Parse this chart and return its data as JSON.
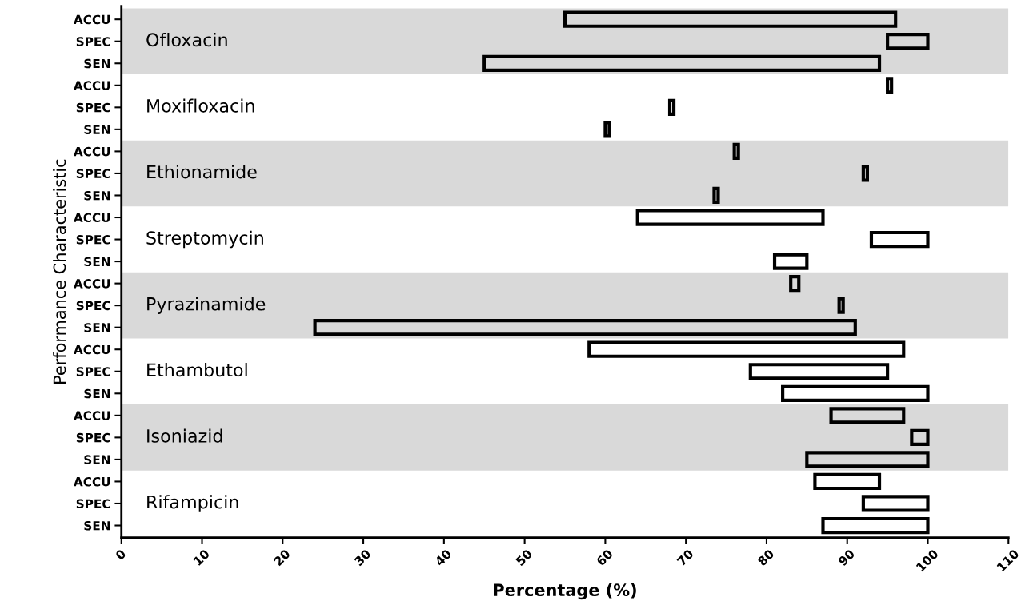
{
  "chart_data": {
    "type": "bar",
    "orientation": "horizontal",
    "xlabel": "Percentage (%)",
    "ylabel": "Performance Characteristic",
    "categories": [
      "ACCU",
      "SPEC",
      "SEN",
      "ACCU",
      "SPEC",
      "SEN",
      "ACCU",
      "SPEC",
      "SEN",
      "ACCU",
      "SPEC",
      "SEN",
      "ACCU",
      "SPEC",
      "SEN",
      "ACCU",
      "SPEC",
      "SEN",
      "ACCU",
      "SPEC",
      "SEN",
      "ACCU",
      "SPEC",
      "SEN"
    ],
    "base": [
      55,
      95,
      45,
      95,
      68,
      60,
      76,
      92,
      73.5,
      64,
      93,
      81,
      83,
      89,
      24,
      58,
      78,
      82,
      88,
      98,
      85,
      86,
      92,
      87
    ],
    "values": [
      41,
      5,
      49,
      0.5,
      0.5,
      0.5,
      0.5,
      0.5,
      0.5,
      23,
      7,
      4,
      1,
      0.5,
      67,
      39,
      17,
      18,
      9,
      2,
      15,
      8,
      8,
      13
    ],
    "color": "#000000",
    "xlim": [
      0,
      110
    ],
    "xticks": [
      0,
      10,
      20,
      30,
      40,
      50,
      60,
      70,
      80,
      90,
      100,
      110
    ],
    "annotations": [
      "Ofloxacin",
      "Moxifloxacin",
      "Ethionamide",
      "Streptomycin",
      "Pyrazinamide",
      "Ethambutol",
      "Isoniazid",
      "Rifampicin"
    ],
    "grid": false
  }
}
